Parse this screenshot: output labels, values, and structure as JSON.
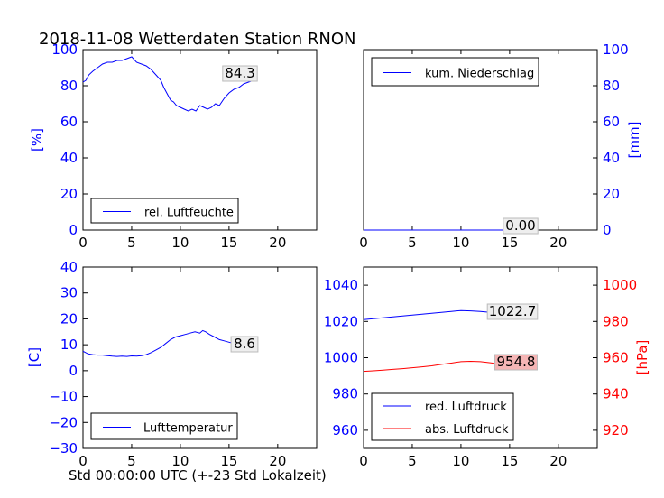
{
  "title": "2018-11-08 Wetterdaten Station RNON",
  "xlabel": "Std 00:00:00 UTC (+-23 Std Lokalzeit)",
  "colors": {
    "blue": "#0000ff",
    "red": "#ff0000"
  },
  "chart_data": [
    {
      "type": "line",
      "panel": "top-left",
      "ylabel": "[%]",
      "ylabel_color": "#0000ff",
      "ylim": [
        0,
        100
      ],
      "yticks": [
        "0",
        "20",
        "40",
        "60",
        "80",
        "100"
      ],
      "xlim": [
        0,
        24
      ],
      "xticks": [
        "0",
        "5",
        "10",
        "15",
        "20"
      ],
      "grid": false,
      "legend": "lower-left",
      "annotation": "84.3",
      "series": [
        {
          "name": "rel. Luftfeuchte",
          "color": "#0000ff",
          "x": [
            0,
            0.3,
            0.6,
            1,
            1.5,
            2,
            2.5,
            3,
            3.5,
            4,
            4.5,
            5,
            5.5,
            6,
            6.5,
            7,
            7.5,
            8,
            8.3,
            8.6,
            9,
            9.3,
            9.6,
            10,
            10.4,
            10.8,
            11.2,
            11.6,
            12,
            12.4,
            12.8,
            13.2,
            13.6,
            14,
            14.5,
            15,
            15.5,
            16,
            16.5,
            17,
            17.5,
            17.8
          ],
          "y": [
            82,
            83,
            86,
            88,
            90,
            92,
            93,
            93,
            94,
            94,
            95,
            96,
            93,
            92,
            91,
            89,
            86,
            83,
            79,
            76,
            72,
            71,
            69,
            68,
            67,
            66,
            67,
            66,
            69,
            68,
            67,
            68,
            70,
            69,
            73,
            76,
            78,
            79,
            81,
            82,
            83,
            84.3
          ]
        }
      ]
    },
    {
      "type": "line",
      "panel": "top-right",
      "ylabel": "[mm]",
      "ylabel_color": "#0000ff",
      "ylim": [
        0,
        100
      ],
      "yticks": [
        "0",
        "20",
        "40",
        "60",
        "80",
        "100"
      ],
      "xlim": [
        0,
        24
      ],
      "xticks": [
        "0",
        "5",
        "10",
        "15",
        "20"
      ],
      "grid": false,
      "legend": "upper-left",
      "annotation": "0.00",
      "series": [
        {
          "name": "kum. Niederschlag",
          "color": "#0000ff",
          "x": [
            0,
            17.8
          ],
          "y": [
            0,
            0
          ]
        }
      ]
    },
    {
      "type": "line",
      "panel": "bottom-left",
      "ylabel": "[C]",
      "ylabel_color": "#0000ff",
      "ylim": [
        -30,
        40
      ],
      "yticks": [
        "−30",
        "−20",
        "−10",
        "0",
        "10",
        "20",
        "30",
        "40"
      ],
      "xlim": [
        0,
        24
      ],
      "xticks": [
        "0",
        "5",
        "10",
        "15",
        "20"
      ],
      "grid": false,
      "legend": "lower-left",
      "annotation": "8.6",
      "series": [
        {
          "name": "Lufttemperatur",
          "color": "#0000ff",
          "x": [
            0,
            0.5,
            1,
            1.5,
            2,
            2.5,
            3,
            3.5,
            4,
            4.5,
            5,
            5.5,
            6,
            6.5,
            7,
            7.5,
            8,
            8.5,
            9,
            9.5,
            10,
            10.5,
            11,
            11.5,
            12,
            12.3,
            12.6,
            13,
            13.5,
            14,
            14.5,
            15,
            15.5,
            16,
            16.5,
            17,
            17.5,
            17.8
          ],
          "y": [
            7.5,
            6.5,
            6.2,
            6,
            6,
            5.8,
            5.6,
            5.5,
            5.6,
            5.5,
            5.7,
            5.6,
            5.8,
            6.2,
            7,
            8,
            9,
            10.5,
            12,
            13,
            13.5,
            14,
            14.5,
            15,
            14.5,
            15.5,
            15,
            14,
            13,
            12,
            11.5,
            11,
            10.5,
            10,
            9.5,
            9,
            8.8,
            8.6
          ]
        }
      ]
    },
    {
      "type": "line",
      "panel": "bottom-right",
      "ylabel": "[hPa]",
      "ylabel_color": "#ff0000",
      "ylim_left": [
        950,
        1050
      ],
      "ylim_right": [
        910,
        1010
      ],
      "yticks_left": [
        "960",
        "980",
        "1000",
        "1020",
        "1040"
      ],
      "yticks_right": [
        "920",
        "940",
        "960",
        "980",
        "1000"
      ],
      "xlim": [
        0,
        24
      ],
      "xticks": [
        "0",
        "5",
        "10",
        "15",
        "20"
      ],
      "grid": false,
      "legend": "lower-left",
      "series": [
        {
          "name": "red. Luftdruck",
          "color": "#0000ff",
          "axis": "left",
          "annotation": "1022.7",
          "x": [
            0,
            1,
            2,
            3,
            4,
            5,
            6,
            7,
            8,
            9,
            10,
            11,
            12,
            13,
            14,
            15,
            16,
            17,
            17.8
          ],
          "y": [
            1021,
            1021.5,
            1022,
            1022.5,
            1023,
            1023.5,
            1024,
            1024.5,
            1025,
            1025.5,
            1026,
            1025.8,
            1025.5,
            1025,
            1024.5,
            1024,
            1023.5,
            1023,
            1022.7
          ]
        },
        {
          "name": "abs. Luftdruck",
          "color": "#ff0000",
          "axis": "right",
          "annotation": "954.8",
          "x": [
            0,
            1,
            2,
            3,
            4,
            5,
            6,
            7,
            8,
            9,
            10,
            11,
            12,
            13,
            14,
            15,
            16,
            17,
            17.8
          ],
          "y": [
            952.5,
            952.8,
            953.2,
            953.6,
            954,
            954.5,
            955,
            955.5,
            956.3,
            957,
            957.8,
            958,
            957.8,
            957.2,
            956.5,
            955.8,
            955.3,
            955,
            954.8
          ]
        }
      ]
    }
  ]
}
